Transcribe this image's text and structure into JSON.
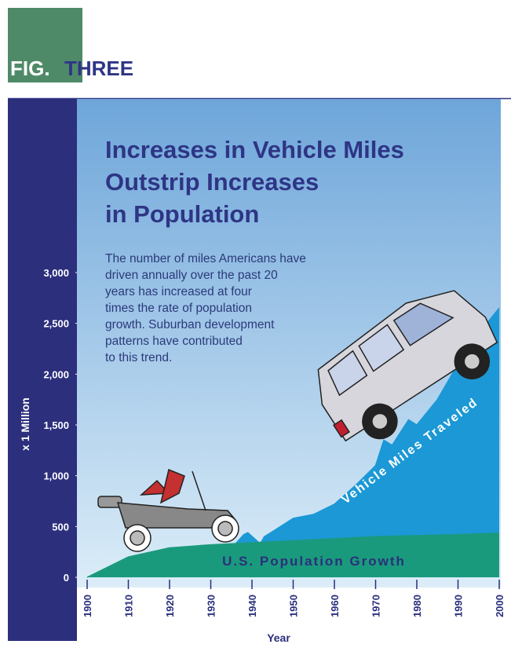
{
  "chart_data": {
    "type": "area",
    "figure_label": "FIG.",
    "figure_number": "THREE",
    "title": [
      "Increases in Vehicle Miles",
      "Outstrip Increases",
      "in Population"
    ],
    "description": [
      "The number of miles Americans have",
      "driven annually over the past 20",
      "years has increased at four",
      "times the rate of population",
      "growth. Suburban development",
      "patterns have contributed",
      "to this trend."
    ],
    "ylabel": "x 1 Million",
    "xlabel": "Year",
    "xlim": [
      1900,
      2000
    ],
    "xticks": [
      1900,
      1910,
      1920,
      1930,
      1940,
      1950,
      1960,
      1970,
      1980,
      1990,
      2000
    ],
    "ylim": [
      0,
      3000
    ],
    "yticks": [
      0,
      500,
      {
        "value": 1000,
        "label": "1,000"
      },
      {
        "value": 1500,
        "label": "1,500"
      },
      {
        "value": 2000,
        "label": "2,000"
      },
      {
        "value": 2500,
        "label": "2,500"
      },
      {
        "value": 3000,
        "label": "3,000"
      }
    ],
    "series": [
      {
        "name": "Vehicle Miles Traveled",
        "color": "#1b98d5",
        "x": [
          1936,
          1938,
          1939,
          1942,
          1943,
          1945,
          1950,
          1955,
          1960,
          1965,
          1970,
          1972,
          1974,
          1978,
          1980,
          1985,
          1990,
          1995,
          2000
        ],
        "values": [
          330,
          420,
          440,
          330,
          400,
          450,
          580,
          620,
          720,
          900,
          1100,
          1350,
          1300,
          1550,
          1500,
          1750,
          2100,
          2400,
          2650
        ]
      },
      {
        "name": "U.S. Population Growth",
        "color": "#1a9a7c",
        "x": [
          1900,
          1910,
          1920,
          1930,
          1940,
          1950,
          1960,
          1970,
          1980,
          1990,
          2000
        ],
        "values": [
          0,
          200,
          290,
          320,
          340,
          360,
          380,
          400,
          410,
          420,
          435
        ]
      }
    ]
  }
}
